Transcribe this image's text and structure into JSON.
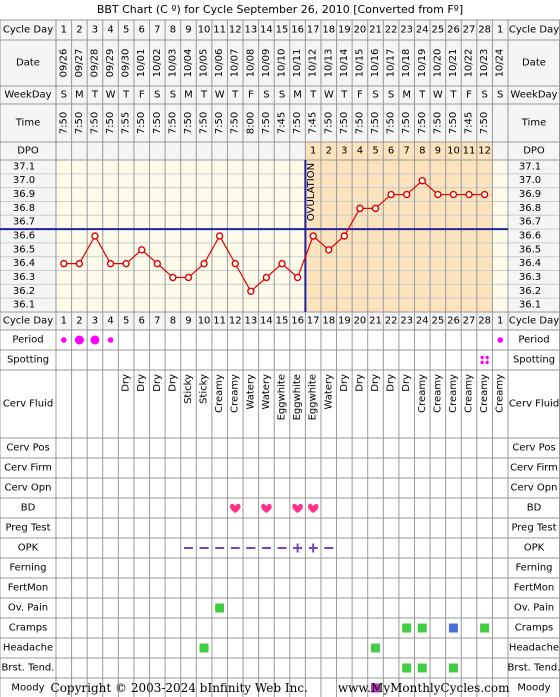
{
  "title": "BBT Chart (C º) for Cycle September 26, 2010  [Converted from Fº]",
  "footer": {
    "copyright": "Copyright © 2003-2024 bInfinity Web Inc.",
    "site": "www.MyMonthlyCycles.com"
  },
  "colors": {
    "grid": "#999999",
    "header_bg": "#f5f5f5",
    "chart_bg": "#fdfbea",
    "post_ov_bg": "#fbe3bd",
    "line": "#e00000",
    "ov_line": "#2020a0",
    "period": "#ff00ff",
    "bd": "#ff3388",
    "opk": "#8040c0",
    "symptom": "#44cc44",
    "cramps_blue": "#4a6fdb",
    "moody": "#bb33bb"
  },
  "labels": {
    "cycle_day": "Cycle Day",
    "date": "Date",
    "weekday": "WeekDay",
    "time": "Time",
    "dpo": "DPO",
    "ovulation": "OVULATION"
  },
  "days": [
    1,
    2,
    3,
    4,
    5,
    6,
    7,
    8,
    9,
    10,
    11,
    12,
    13,
    14,
    15,
    16,
    17,
    18,
    19,
    20,
    21,
    22,
    23,
    24,
    25,
    26,
    27,
    28,
    1
  ],
  "dates": [
    "09/26",
    "09/27",
    "09/28",
    "09/29",
    "09/30",
    "10/01",
    "10/02",
    "10/03",
    "10/04",
    "10/05",
    "10/06",
    "10/07",
    "10/08",
    "10/09",
    "10/10",
    "10/11",
    "10/12",
    "10/13",
    "10/14",
    "10/15",
    "10/16",
    "10/17",
    "10/18",
    "10/19",
    "10/20",
    "10/21",
    "10/22",
    "10/23",
    "10/24"
  ],
  "weekdays": [
    "S",
    "M",
    "T",
    "W",
    "T",
    "F",
    "S",
    "S",
    "M",
    "T",
    "W",
    "T",
    "F",
    "S",
    "S",
    "M",
    "T",
    "W",
    "T",
    "F",
    "S",
    "S",
    "M",
    "T",
    "W",
    "T",
    "F",
    "S",
    "S"
  ],
  "times": [
    "7:50",
    "7:50",
    "7:50",
    "7:50",
    "7:55",
    "7:50",
    "7:50",
    "7:50",
    "7:50",
    "7:50",
    "7:50",
    "7:50",
    "8:00",
    "7:50",
    "7:45",
    "7:50",
    "7:45",
    "7:50",
    "7:50",
    "7:50",
    "7:50",
    "7:50",
    "7:50",
    "7:50",
    "7:50",
    "7:50",
    "7:45",
    "7:50",
    ""
  ],
  "dpo": [
    "",
    "",
    "",
    "",
    "",
    "",
    "",
    "",
    "",
    "",
    "",
    "",
    "",
    "",
    "",
    "",
    "1",
    "2",
    "3",
    "4",
    "5",
    "6",
    "7",
    "8",
    "9",
    "10",
    "11",
    "12",
    ""
  ],
  "chart_data": {
    "type": "line",
    "title": "BBT Chart (C º) for Cycle September 26, 2010  [Converted from Fº]",
    "x": [
      1,
      2,
      3,
      4,
      5,
      6,
      7,
      8,
      9,
      10,
      11,
      12,
      13,
      14,
      15,
      16,
      17,
      18,
      19,
      20,
      21,
      22,
      23,
      24,
      25,
      26,
      27,
      28
    ],
    "y": [
      36.4,
      36.4,
      36.6,
      36.4,
      36.4,
      36.5,
      36.4,
      36.3,
      36.3,
      36.4,
      36.6,
      36.4,
      36.2,
      36.3,
      36.4,
      36.3,
      36.6,
      36.5,
      36.6,
      36.8,
      36.8,
      36.9,
      36.9,
      37.0,
      36.9,
      36.9,
      36.9,
      36.9
    ],
    "ylim": [
      36.1,
      37.1
    ],
    "yticks": [
      "37.1",
      "37.0",
      "36.9",
      "36.8",
      "36.7",
      "36.6",
      "36.5",
      "36.4",
      "36.3",
      "36.2",
      "36.1"
    ],
    "coverline": 36.65,
    "ovulation_day": 16
  },
  "rows": [
    {
      "label": "Period",
      "h": 20,
      "items": [
        {
          "d": 1,
          "type": "dot",
          "size": "s"
        },
        {
          "d": 2,
          "type": "dot",
          "size": "l"
        },
        {
          "d": 3,
          "type": "dot",
          "size": "l"
        },
        {
          "d": 4,
          "type": "dot",
          "size": "s"
        },
        {
          "d": 29,
          "type": "dot",
          "size": "s"
        }
      ]
    },
    {
      "label": "Spotting",
      "h": 20,
      "items": [
        {
          "d": 28,
          "type": "spot"
        }
      ]
    },
    {
      "label": "Cerv Fluid",
      "h": 68,
      "items": [
        {
          "d": 5,
          "type": "text",
          "text": "Dry"
        },
        {
          "d": 6,
          "type": "text",
          "text": "Dry"
        },
        {
          "d": 7,
          "type": "text",
          "text": "Dry"
        },
        {
          "d": 8,
          "type": "text",
          "text": "Dry"
        },
        {
          "d": 9,
          "type": "text",
          "text": "Sticky"
        },
        {
          "d": 10,
          "type": "text",
          "text": "Sticky"
        },
        {
          "d": 11,
          "type": "text",
          "text": "Creamy"
        },
        {
          "d": 12,
          "type": "text",
          "text": "Creamy"
        },
        {
          "d": 13,
          "type": "text",
          "text": "Watery"
        },
        {
          "d": 14,
          "type": "text",
          "text": "Watery"
        },
        {
          "d": 15,
          "type": "text",
          "text": "Eggwhite"
        },
        {
          "d": 16,
          "type": "text",
          "text": "Eggwhite"
        },
        {
          "d": 17,
          "type": "text",
          "text": "Eggwhite"
        },
        {
          "d": 18,
          "type": "text",
          "text": "Watery"
        },
        {
          "d": 19,
          "type": "text",
          "text": "Dry"
        },
        {
          "d": 20,
          "type": "text",
          "text": "Dry"
        },
        {
          "d": 21,
          "type": "text",
          "text": "Dry"
        },
        {
          "d": 22,
          "type": "text",
          "text": "Dry"
        },
        {
          "d": 23,
          "type": "text",
          "text": "Dry"
        },
        {
          "d": 24,
          "type": "text",
          "text": "Creamy"
        },
        {
          "d": 25,
          "type": "text",
          "text": "Creamy"
        },
        {
          "d": 26,
          "type": "text",
          "text": "Creamy"
        },
        {
          "d": 27,
          "type": "text",
          "text": "Creamy"
        },
        {
          "d": 28,
          "type": "text",
          "text": "Creamy"
        },
        {
          "d": 29,
          "type": "text",
          "text": "Creamy"
        }
      ]
    },
    {
      "label": "Cerv Pos",
      "h": 20,
      "items": []
    },
    {
      "label": "Cerv Firm",
      "h": 20,
      "items": []
    },
    {
      "label": "Cerv Opn",
      "h": 20,
      "items": []
    },
    {
      "label": "BD",
      "h": 20,
      "items": [
        {
          "d": 12,
          "type": "heart"
        },
        {
          "d": 14,
          "type": "heart"
        },
        {
          "d": 16,
          "type": "heart"
        },
        {
          "d": 17,
          "type": "heart"
        }
      ]
    },
    {
      "label": "Preg Test",
      "h": 20,
      "items": []
    },
    {
      "label": "OPK",
      "h": 20,
      "items": [
        {
          "d": 9,
          "type": "minus"
        },
        {
          "d": 10,
          "type": "minus"
        },
        {
          "d": 11,
          "type": "minus"
        },
        {
          "d": 12,
          "type": "minus"
        },
        {
          "d": 13,
          "type": "minus"
        },
        {
          "d": 14,
          "type": "minus"
        },
        {
          "d": 15,
          "type": "minus"
        },
        {
          "d": 16,
          "type": "plus"
        },
        {
          "d": 17,
          "type": "plus"
        },
        {
          "d": 18,
          "type": "minus"
        }
      ]
    },
    {
      "label": "Ferning",
      "h": 20,
      "items": []
    },
    {
      "label": "FertMon",
      "h": 20,
      "items": []
    },
    {
      "label": "Ov. Pain",
      "h": 20,
      "items": [
        {
          "d": 11,
          "type": "sq",
          "color": "symptom"
        }
      ]
    },
    {
      "label": "Cramps",
      "h": 20,
      "items": [
        {
          "d": 23,
          "type": "sq",
          "color": "symptom"
        },
        {
          "d": 24,
          "type": "sq",
          "color": "symptom"
        },
        {
          "d": 26,
          "type": "sq",
          "color": "cramps_blue"
        },
        {
          "d": 28,
          "type": "sq",
          "color": "symptom"
        }
      ]
    },
    {
      "label": "Headache",
      "h": 20,
      "items": [
        {
          "d": 10,
          "type": "sq",
          "color": "symptom"
        },
        {
          "d": 21,
          "type": "sq",
          "color": "symptom"
        }
      ]
    },
    {
      "label": "Brst. Tend.",
      "h": 20,
      "items": [
        {
          "d": 23,
          "type": "sq",
          "color": "symptom"
        },
        {
          "d": 24,
          "type": "sq",
          "color": "symptom"
        },
        {
          "d": 26,
          "type": "sq",
          "color": "symptom"
        }
      ]
    },
    {
      "label": "Moody",
      "h": 20,
      "items": [
        {
          "d": 21,
          "type": "sq",
          "color": "moody"
        }
      ]
    }
  ]
}
